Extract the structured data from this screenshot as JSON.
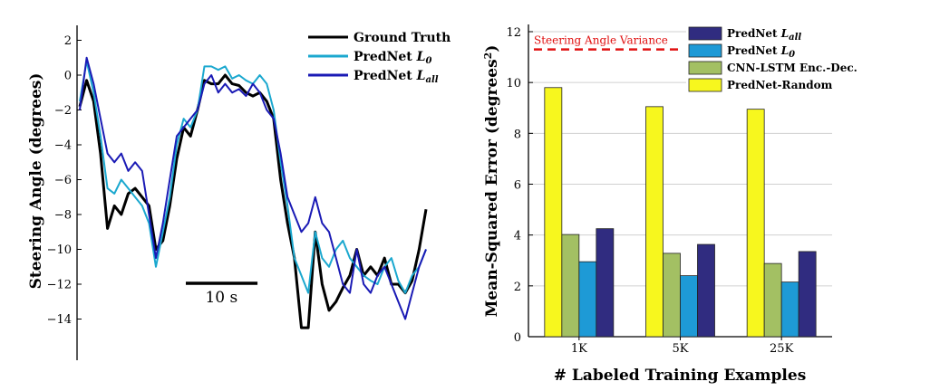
{
  "chart_data": [
    {
      "type": "line",
      "ylabel": "Steering Angle (degrees)",
      "ylim": [
        -16,
        2.5
      ],
      "yticks": [
        2,
        0,
        -2,
        -4,
        -6,
        -8,
        -10,
        -12,
        -14
      ],
      "ytick_labels": [
        "2",
        "0",
        "−2",
        "−4",
        "−6",
        "−8",
        "−10",
        "−12",
        "−14"
      ],
      "xlim": [
        0,
        100
      ],
      "scalebar": {
        "label": "10 s",
        "seconds": 10
      },
      "legend_position": "top-right",
      "series": [
        {
          "name": "Ground Truth",
          "name_main": "Ground Truth",
          "name_sub": "",
          "color": "#000000",
          "x": [
            0,
            2,
            4,
            6,
            8,
            10,
            12,
            14,
            16,
            18,
            20,
            22,
            24,
            26,
            28,
            30,
            32,
            34,
            36,
            38,
            40,
            42,
            44,
            46,
            48,
            50,
            52,
            54,
            56,
            58,
            60,
            62,
            64,
            66,
            68,
            70,
            72,
            74,
            76,
            78,
            80,
            82,
            84,
            86,
            88,
            90,
            92,
            94,
            96,
            98,
            100
          ],
          "y": [
            -1.8,
            -0.3,
            -1.5,
            -4.5,
            -8.8,
            -7.5,
            -8.0,
            -6.8,
            -6.5,
            -7.0,
            -7.5,
            -10.0,
            -9.5,
            -7.5,
            -4.8,
            -3.0,
            -3.5,
            -2.0,
            -0.3,
            -0.5,
            -0.5,
            0.0,
            -0.5,
            -0.6,
            -1.0,
            -1.2,
            -1.0,
            -1.5,
            -2.5,
            -6.0,
            -8.5,
            -10.5,
            -14.5,
            -14.5,
            -9.0,
            -12.0,
            -13.5,
            -13.0,
            -12.2,
            -11.5,
            -10.0,
            -11.5,
            -11.0,
            -11.5,
            -10.5,
            -12.0,
            -12.0,
            -12.5,
            -11.8,
            -10.0,
            -7.7
          ]
        },
        {
          "name": "PredNet L0",
          "name_main": "PredNet ",
          "name_sub": "0",
          "color": "#1ba8cf",
          "x": [
            0,
            2,
            4,
            6,
            8,
            10,
            12,
            14,
            16,
            18,
            20,
            22,
            24,
            26,
            28,
            30,
            32,
            34,
            36,
            38,
            40,
            42,
            44,
            46,
            48,
            50,
            52,
            54,
            56,
            58,
            60,
            62,
            64,
            66,
            68,
            70,
            72,
            74,
            76,
            78,
            80,
            82,
            84,
            86,
            88,
            90,
            92,
            94,
            96,
            98,
            100
          ],
          "y": [
            -1.5,
            0.8,
            -1.0,
            -3.5,
            -6.5,
            -6.8,
            -6.0,
            -6.5,
            -7.0,
            -7.5,
            -8.5,
            -11.0,
            -9.0,
            -7.0,
            -4.0,
            -2.5,
            -3.0,
            -2.0,
            0.5,
            0.5,
            0.3,
            0.5,
            -0.2,
            0.0,
            -0.3,
            -0.5,
            0.0,
            -0.5,
            -2.0,
            -5.0,
            -7.5,
            -10.5,
            -11.5,
            -12.5,
            -9.0,
            -10.5,
            -11.0,
            -10.0,
            -9.5,
            -10.5,
            -11.0,
            -11.5,
            -11.8,
            -12.0,
            -11.0,
            -10.5,
            -11.8,
            -12.5,
            -11.5,
            -11.0,
            -10.0
          ]
        },
        {
          "name": "PredNet Lall",
          "name_main": "PredNet ",
          "name_sub": "all",
          "color": "#1a1ab5",
          "x": [
            0,
            2,
            4,
            6,
            8,
            10,
            12,
            14,
            16,
            18,
            20,
            22,
            24,
            26,
            28,
            30,
            32,
            34,
            36,
            38,
            40,
            42,
            44,
            46,
            48,
            50,
            52,
            54,
            56,
            58,
            60,
            62,
            64,
            66,
            68,
            70,
            72,
            74,
            76,
            78,
            80,
            82,
            84,
            86,
            88,
            90,
            92,
            94,
            96,
            98,
            100
          ],
          "y": [
            -2.0,
            1.0,
            -0.5,
            -2.5,
            -4.5,
            -5.0,
            -4.5,
            -5.5,
            -5.0,
            -5.5,
            -8.0,
            -10.5,
            -8.5,
            -6.0,
            -3.5,
            -3.0,
            -2.5,
            -2.0,
            -0.5,
            0.0,
            -1.0,
            -0.5,
            -1.0,
            -0.8,
            -1.2,
            -0.5,
            -1.0,
            -2.0,
            -2.5,
            -4.5,
            -7.0,
            -8.0,
            -9.0,
            -8.5,
            -7.0,
            -8.5,
            -9.0,
            -10.5,
            -12.0,
            -12.5,
            -10.0,
            -12.0,
            -12.5,
            -11.5,
            -11.0,
            -12.0,
            -13.0,
            -14.0,
            -12.5,
            -11.0,
            -10.0
          ]
        }
      ]
    },
    {
      "type": "bar",
      "xlabel": "# Labeled Training Examples",
      "ylabel": "Mean-Squared Error (degrees",
      "ylabel_sup": "2",
      "ylabel_close": ")",
      "categories": [
        "1K",
        "5K",
        "25K"
      ],
      "ylim": [
        0,
        12
      ],
      "yticks": [
        0,
        2,
        4,
        6,
        8,
        10,
        12
      ],
      "grid": true,
      "legend_position": "top-right",
      "reference_line": {
        "label": "Steering Angle Variance",
        "value": 11.3,
        "color": "#e01010"
      },
      "series": [
        {
          "name": "PredNet-Random",
          "name_main": "PredNet-Random",
          "name_sub": "",
          "color": "#f7f71e",
          "values": [
            9.8,
            9.05,
            8.95
          ]
        },
        {
          "name": "CNN-LSTM Enc.-Dec.",
          "name_main": "CNN-LSTM Enc.-Dec.",
          "name_sub": "",
          "color": "#a3c063",
          "values": [
            4.02,
            3.28,
            2.88
          ]
        },
        {
          "name": "PredNet L0",
          "name_main": "PredNet ",
          "name_sub": "0",
          "color": "#1e9ad6",
          "values": [
            2.95,
            2.4,
            2.15
          ]
        },
        {
          "name": "PredNet Lall",
          "name_main": "PredNet ",
          "name_sub": "all",
          "color": "#302c80",
          "values": [
            4.25,
            3.63,
            3.35
          ]
        }
      ],
      "legend_order": [
        3,
        2,
        1,
        0
      ]
    }
  ]
}
